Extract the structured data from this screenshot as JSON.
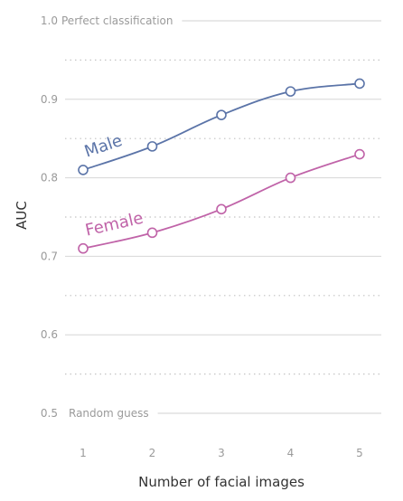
{
  "chart_data": {
    "type": "line",
    "x": [
      1,
      2,
      3,
      4,
      5
    ],
    "xlabel": "Number of facial images",
    "ylabel": "AUC",
    "xlim": [
      1,
      5
    ],
    "ylim": [
      0.5,
      1.0
    ],
    "yticks": [
      0.5,
      0.6,
      0.7,
      0.8,
      0.9,
      1.0
    ],
    "ytick_labels": [
      "0.5",
      "0.6",
      "0.7",
      "0.8",
      "0.9",
      "1.0"
    ],
    "xtick_labels": [
      "1",
      "2",
      "3",
      "4",
      "5"
    ],
    "grid": true,
    "reference_lines": [
      {
        "y": 1.0,
        "label": "Perfect classification"
      },
      {
        "y": 0.5,
        "label": "Random guess"
      }
    ],
    "series": [
      {
        "name": "Male",
        "values": [
          0.81,
          0.84,
          0.88,
          0.91,
          0.92
        ],
        "color": "#5b74a8"
      },
      {
        "name": "Female",
        "values": [
          0.71,
          0.73,
          0.76,
          0.8,
          0.83
        ],
        "color": "#c063a8"
      }
    ]
  }
}
